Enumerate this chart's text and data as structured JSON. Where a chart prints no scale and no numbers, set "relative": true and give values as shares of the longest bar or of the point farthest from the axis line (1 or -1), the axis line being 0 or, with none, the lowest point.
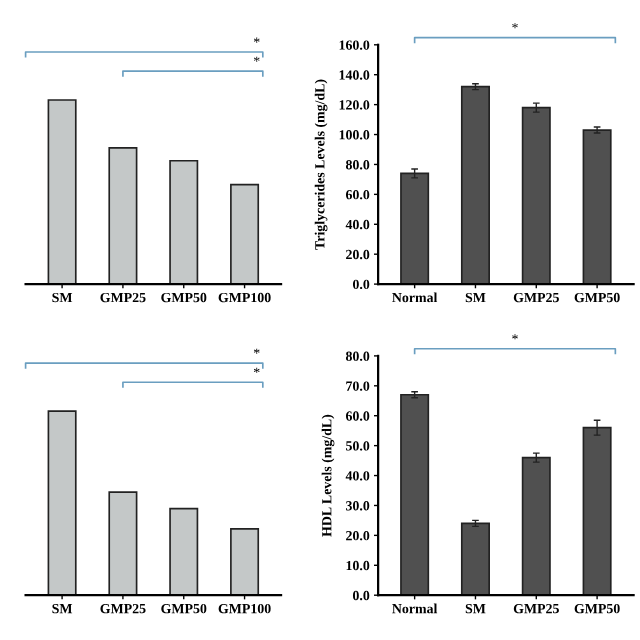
{
  "chart_data": [
    {
      "type": "bar",
      "relative": true,
      "categories": [
        "SM",
        "GMP25",
        "GMP50",
        "GMP100"
      ],
      "values": [
        1,
        0.74,
        0.67,
        0.54
      ],
      "color": "#c4c8c8",
      "annotations": [
        "*",
        "*"
      ],
      "grid": false,
      "tick_labels": "x"
    },
    {
      "type": "bar",
      "categories": [
        "Normal",
        "SM",
        "GMP25",
        "GMP50"
      ],
      "values": [
        74,
        132,
        118,
        103
      ],
      "errors": [
        3,
        2,
        3,
        2
      ],
      "color": "#505050",
      "ylabel": "Triglycerides Levels (mg/dL)",
      "ylim": [
        0,
        160
      ],
      "yticks": [
        {
          "value": 0,
          "label": "0.0"
        },
        {
          "value": 20,
          "label": "20.0"
        },
        {
          "value": 40,
          "label": "40.0"
        },
        {
          "value": 60,
          "label": "60.0"
        },
        {
          "value": 80,
          "label": "80.0"
        },
        {
          "value": 100,
          "label": "100.0"
        },
        {
          "value": 120,
          "label": "120.0"
        },
        {
          "value": 140,
          "label": "140.0"
        },
        {
          "value": 160,
          "label": "160.0"
        }
      ],
      "annotations": [
        "*"
      ],
      "grid": false
    },
    {
      "type": "bar",
      "relative": true,
      "categories": [
        "SM",
        "GMP25",
        "GMP50",
        "GMP100"
      ],
      "values": [
        1,
        0.56,
        0.47,
        0.36
      ],
      "color": "#c4c8c8",
      "annotations": [
        "*",
        "*"
      ],
      "grid": false,
      "tick_labels": "x"
    },
    {
      "type": "bar",
      "categories": [
        "Normal",
        "SM",
        "GMP25",
        "GMP50"
      ],
      "values": [
        67,
        24,
        46,
        56
      ],
      "errors": [
        1,
        1,
        1.5,
        2.5
      ],
      "color": "#505050",
      "ylabel": "HDL Levels (mg/dL)",
      "ylim": [
        0,
        80
      ],
      "yticks": [
        {
          "value": 0,
          "label": "0.0"
        },
        {
          "value": 10,
          "label": "10.0"
        },
        {
          "value": 20,
          "label": "20.0"
        },
        {
          "value": 30,
          "label": "30.0"
        },
        {
          "value": 40,
          "label": "40.0"
        },
        {
          "value": 50,
          "label": "50.0"
        },
        {
          "value": 60,
          "label": "60.0"
        },
        {
          "value": 70,
          "label": "70.0"
        },
        {
          "value": 80,
          "label": "80.0"
        }
      ],
      "annotations": [
        "*"
      ],
      "grid": false
    }
  ]
}
